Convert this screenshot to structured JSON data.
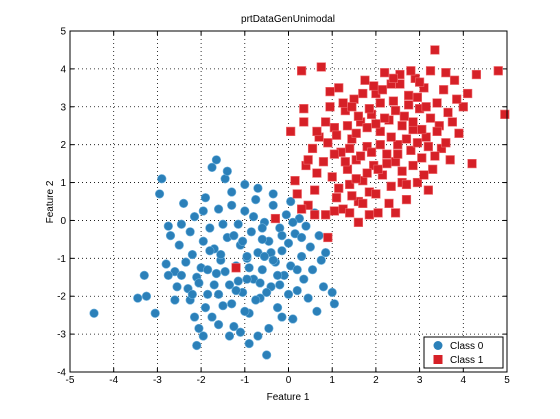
{
  "chart_data": {
    "type": "scatter",
    "title": "prtDataGenUnimodal",
    "xlabel": "Feature 1",
    "ylabel": "Feature 2",
    "xlim": [
      -5,
      5
    ],
    "ylim": [
      -4,
      5
    ],
    "xticks": [
      -5,
      -4,
      -3,
      -2,
      -1,
      0,
      1,
      2,
      3,
      4,
      5
    ],
    "yticks": [
      -4,
      -3,
      -2,
      -1,
      0,
      1,
      2,
      3,
      4,
      5
    ],
    "grid": true,
    "grid_style": "dotted",
    "legend_position": "bottom-right",
    "series": [
      {
        "name": "Class 0",
        "marker": "circle",
        "color": "#2b80b9",
        "points": [
          [
            -4.45,
            -2.45
          ],
          [
            -3.3,
            -1.45
          ],
          [
            -3.25,
            -2.0
          ],
          [
            -3.05,
            -2.45
          ],
          [
            -2.95,
            0.7
          ],
          [
            -2.9,
            1.1
          ],
          [
            -2.8,
            -1.15
          ],
          [
            -2.75,
            -0.15
          ],
          [
            -2.7,
            -0.4
          ],
          [
            -2.6,
            -1.35
          ],
          [
            -2.55,
            -1.75
          ],
          [
            -2.5,
            -0.65
          ],
          [
            -2.45,
            -0.1
          ],
          [
            -2.4,
            0.45
          ],
          [
            -2.35,
            -1.1
          ],
          [
            -2.3,
            -1.8
          ],
          [
            -2.25,
            -2.1
          ],
          [
            -2.2,
            -0.9
          ],
          [
            -2.15,
            0.1
          ],
          [
            -2.1,
            -1.5
          ],
          [
            -2.05,
            -2.85
          ],
          [
            -2.0,
            -1.25
          ],
          [
            -1.95,
            -0.55
          ],
          [
            -1.9,
            0.6
          ],
          [
            -1.85,
            -1.95
          ],
          [
            -1.8,
            -0.2
          ],
          [
            -1.75,
            -2.55
          ],
          [
            -1.7,
            -0.75
          ],
          [
            -1.65,
            -1.4
          ],
          [
            -1.6,
            0.3
          ],
          [
            -1.55,
            -1.05
          ],
          [
            -1.5,
            -2.25
          ],
          [
            -1.45,
            1.1
          ],
          [
            -1.4,
            -0.45
          ],
          [
            -1.35,
            -1.7
          ],
          [
            -1.3,
            0.75
          ],
          [
            -1.25,
            -2.8
          ],
          [
            -1.2,
            -1.2
          ],
          [
            -1.15,
            -0.1
          ],
          [
            -1.1,
            -0.65
          ],
          [
            -1.05,
            -1.9
          ],
          [
            -1.0,
            0.25
          ],
          [
            -0.95,
            -1.0
          ],
          [
            -0.9,
            -2.45
          ],
          [
            -0.85,
            -0.3
          ],
          [
            -0.8,
            -1.55
          ],
          [
            -0.75,
            0.55
          ],
          [
            -0.7,
            -0.85
          ],
          [
            -0.65,
            -2.05
          ],
          [
            -0.6,
            -1.3
          ],
          [
            -0.55,
            -0.05
          ],
          [
            -0.5,
            -3.55
          ],
          [
            -0.45,
            -0.55
          ],
          [
            -0.4,
            -1.75
          ],
          [
            -0.35,
            0.4
          ],
          [
            -0.3,
            -1.1
          ],
          [
            -0.25,
            -2.3
          ],
          [
            -0.2,
            -0.2
          ],
          [
            -0.15,
            -0.8
          ],
          [
            -0.1,
            -1.45
          ],
          [
            -0.05,
            0.15
          ],
          [
            0.0,
            -0.6
          ],
          [
            0.05,
            -1.2
          ],
          [
            0.1,
            -2.6
          ],
          [
            0.15,
            -0.35
          ],
          [
            0.2,
            -1.85
          ],
          [
            0.25,
            0.05
          ],
          [
            0.3,
            -0.95
          ],
          [
            0.35,
            -1.55
          ],
          [
            0.4,
            -0.15
          ],
          [
            0.45,
            -2.05
          ],
          [
            0.5,
            -0.7
          ],
          [
            0.55,
            -1.3
          ],
          [
            0.6,
            0.2
          ],
          [
            0.65,
            -2.4
          ],
          [
            0.7,
            -0.4
          ],
          [
            0.75,
            -1.05
          ],
          [
            0.8,
            -1.75
          ],
          [
            0.85,
            -0.85
          ],
          [
            1.0,
            -1.9
          ],
          [
            1.05,
            -2.2
          ],
          [
            -2.1,
            -3.3
          ],
          [
            -2.15,
            -2.55
          ],
          [
            -1.95,
            -3.05
          ],
          [
            -1.6,
            -2.75
          ],
          [
            -1.35,
            -3.05
          ],
          [
            -1.1,
            -2.95
          ],
          [
            -0.9,
            -3.25
          ],
          [
            -0.7,
            -3.05
          ],
          [
            -0.45,
            -2.85
          ],
          [
            -0.15,
            -2.55
          ],
          [
            -3.45,
            -2.05
          ],
          [
            -2.75,
            -1.45
          ],
          [
            -2.6,
            -2.1
          ],
          [
            -2.05,
            -1.65
          ],
          [
            -1.85,
            -1.3
          ],
          [
            -1.55,
            -0.9
          ],
          [
            -1.25,
            -0.4
          ],
          [
            -1.15,
            -1.6
          ],
          [
            -0.95,
            -0.95
          ],
          [
            -0.6,
            -0.5
          ],
          [
            -0.4,
            -0.85
          ],
          [
            -0.2,
            -1.7
          ],
          [
            0.1,
            -0.05
          ],
          [
            0.3,
            -0.45
          ],
          [
            -1.75,
            1.4
          ],
          [
            -1.65,
            1.6
          ],
          [
            -1.4,
            1.3
          ],
          [
            -1.0,
            0.95
          ],
          [
            -0.7,
            0.85
          ],
          [
            -0.35,
            0.7
          ],
          [
            0.05,
            0.5
          ],
          [
            -1.95,
            0.25
          ],
          [
            -2.25,
            -0.3
          ],
          [
            -1.8,
            -0.8
          ],
          [
            -1.5,
            -0.1
          ],
          [
            -1.3,
            0.4
          ],
          [
            -1.05,
            -0.55
          ],
          [
            -0.8,
            0.1
          ],
          [
            -0.55,
            -0.95
          ],
          [
            -2.45,
            -1.45
          ],
          [
            -2.2,
            -1.95
          ],
          [
            -1.9,
            -2.3
          ],
          [
            -1.6,
            -1.95
          ],
          [
            -1.3,
            -2.2
          ],
          [
            -1.0,
            -2.4
          ],
          [
            -0.75,
            -2.1
          ],
          [
            -0.5,
            -1.9
          ],
          [
            -0.25,
            -1.45
          ],
          [
            0.0,
            -1.95
          ],
          [
            -0.9,
            -1.25
          ],
          [
            -0.65,
            -1.65
          ],
          [
            -0.35,
            -1.05
          ],
          [
            -0.15,
            -0.4
          ],
          [
            0.2,
            -1.3
          ],
          [
            -1.45,
            -1.35
          ],
          [
            -1.7,
            -1.7
          ],
          [
            -1.2,
            -1.85
          ],
          [
            -0.95,
            -1.55
          ],
          [
            -0.6,
            -0.2
          ]
        ]
      },
      {
        "name": "Class 1",
        "marker": "square",
        "color": "#d62027",
        "points": [
          [
            -1.2,
            -1.25
          ],
          [
            -0.3,
            0.05
          ],
          [
            0.05,
            2.35
          ],
          [
            0.15,
            1.05
          ],
          [
            0.2,
            0.7
          ],
          [
            0.3,
            3.95
          ],
          [
            0.35,
            2.6
          ],
          [
            0.4,
            1.45
          ],
          [
            0.45,
            0.4
          ],
          [
            0.55,
            1.9
          ],
          [
            0.6,
            0.8
          ],
          [
            0.7,
            2.2
          ],
          [
            0.75,
            4.05
          ],
          [
            0.8,
            1.55
          ],
          [
            0.85,
            0.15
          ],
          [
            0.9,
            -0.45
          ],
          [
            0.95,
            3.0
          ],
          [
            1.0,
            1.15
          ],
          [
            1.05,
            2.45
          ],
          [
            1.1,
            0.6
          ],
          [
            1.15,
            3.5
          ],
          [
            1.2,
            1.8
          ],
          [
            1.25,
            0.3
          ],
          [
            1.3,
            2.9
          ],
          [
            1.35,
            1.35
          ],
          [
            1.4,
            0.95
          ],
          [
            1.45,
            2.15
          ],
          [
            1.5,
            3.2
          ],
          [
            1.55,
            1.6
          ],
          [
            1.6,
            0.5
          ],
          [
            1.65,
            2.6
          ],
          [
            1.7,
            1.05
          ],
          [
            1.75,
            3.7
          ],
          [
            1.8,
            1.95
          ],
          [
            1.85,
            0.75
          ],
          [
            1.9,
            2.8
          ],
          [
            1.95,
            1.45
          ],
          [
            2.0,
            3.35
          ],
          [
            2.05,
            0.2
          ],
          [
            2.1,
            2.35
          ],
          [
            2.15,
            1.2
          ],
          [
            2.2,
            3.9
          ],
          [
            2.25,
            1.75
          ],
          [
            2.3,
            2.65
          ],
          [
            2.35,
            0.9
          ],
          [
            2.4,
            3.15
          ],
          [
            2.45,
            1.55
          ],
          [
            2.5,
            2.0
          ],
          [
            2.55,
            3.6
          ],
          [
            2.6,
            1.3
          ],
          [
            2.65,
            2.75
          ],
          [
            2.7,
            0.55
          ],
          [
            2.75,
            3.3
          ],
          [
            2.8,
            1.85
          ],
          [
            2.85,
            2.4
          ],
          [
            2.9,
            3.75
          ],
          [
            2.95,
            1.0
          ],
          [
            3.0,
            2.95
          ],
          [
            3.05,
            1.65
          ],
          [
            3.1,
            3.5
          ],
          [
            3.15,
            2.2
          ],
          [
            3.2,
            0.8
          ],
          [
            3.25,
            2.7
          ],
          [
            3.3,
            1.35
          ],
          [
            3.35,
            4.5
          ],
          [
            3.4,
            3.1
          ],
          [
            3.45,
            2.5
          ],
          [
            3.5,
            1.9
          ],
          [
            3.55,
            3.45
          ],
          [
            3.65,
            2.85
          ],
          [
            3.7,
            1.6
          ],
          [
            3.8,
            3.7
          ],
          [
            3.9,
            2.3
          ],
          [
            4.1,
            3.35
          ],
          [
            4.2,
            1.5
          ],
          [
            4.3,
            3.85
          ],
          [
            4.8,
            3.95
          ],
          [
            4.95,
            2.8
          ],
          [
            2.55,
            3.85
          ],
          [
            2.35,
            3.6
          ],
          [
            2.15,
            3.45
          ],
          [
            1.95,
            3.55
          ],
          [
            1.7,
            3.35
          ],
          [
            1.45,
            3.0
          ],
          [
            2.75,
            3.05
          ],
          [
            2.95,
            3.25
          ],
          [
            3.15,
            3.0
          ],
          [
            2.45,
            2.9
          ],
          [
            2.2,
            2.7
          ],
          [
            2.0,
            2.55
          ],
          [
            1.8,
            2.45
          ],
          [
            1.55,
            2.3
          ],
          [
            2.6,
            2.5
          ],
          [
            2.85,
            2.6
          ],
          [
            3.05,
            2.4
          ],
          [
            2.35,
            2.2
          ],
          [
            2.1,
            2.0
          ],
          [
            1.9,
            1.8
          ],
          [
            1.65,
            1.7
          ],
          [
            1.4,
            1.9
          ],
          [
            2.7,
            2.15
          ],
          [
            2.95,
            2.05
          ],
          [
            3.2,
            1.95
          ],
          [
            2.5,
            1.75
          ],
          [
            2.25,
            1.5
          ],
          [
            2.05,
            1.35
          ],
          [
            1.8,
            1.25
          ],
          [
            1.55,
            1.1
          ],
          [
            1.3,
            1.55
          ],
          [
            1.05,
            1.75
          ],
          [
            0.9,
            2.05
          ],
          [
            0.65,
            1.25
          ],
          [
            0.45,
            1.6
          ],
          [
            1.15,
            0.85
          ],
          [
            1.45,
            0.65
          ],
          [
            1.7,
            0.45
          ],
          [
            2.0,
            0.7
          ],
          [
            2.3,
            0.45
          ],
          [
            2.6,
            1.0
          ],
          [
            2.85,
            1.45
          ],
          [
            3.1,
            1.2
          ],
          [
            3.35,
            1.7
          ],
          [
            3.6,
            2.05
          ],
          [
            3.4,
            2.35
          ],
          [
            3.75,
            2.6
          ],
          [
            4.0,
            3.0
          ],
          [
            3.85,
            3.2
          ],
          [
            3.6,
            3.9
          ],
          [
            3.25,
            3.95
          ],
          [
            3.0,
            3.65
          ],
          [
            2.8,
            3.95
          ],
          [
            2.4,
            3.75
          ],
          [
            2.1,
            3.1
          ],
          [
            1.85,
            2.95
          ],
          [
            1.6,
            2.75
          ],
          [
            1.35,
            2.5
          ],
          [
            1.1,
            2.25
          ],
          [
            0.85,
            2.6
          ],
          [
            0.65,
            2.35
          ],
          [
            0.35,
            2.95
          ],
          [
            1.25,
            3.1
          ],
          [
            0.95,
            3.4
          ],
          [
            1.05,
            0.25
          ],
          [
            1.4,
            0.2
          ],
          [
            1.6,
            -0.05
          ],
          [
            1.85,
            0.15
          ],
          [
            0.6,
            0.15
          ],
          [
            0.3,
            0.3
          ],
          [
            2.45,
            0.2
          ],
          [
            2.7,
            0.95
          ]
        ]
      }
    ]
  }
}
